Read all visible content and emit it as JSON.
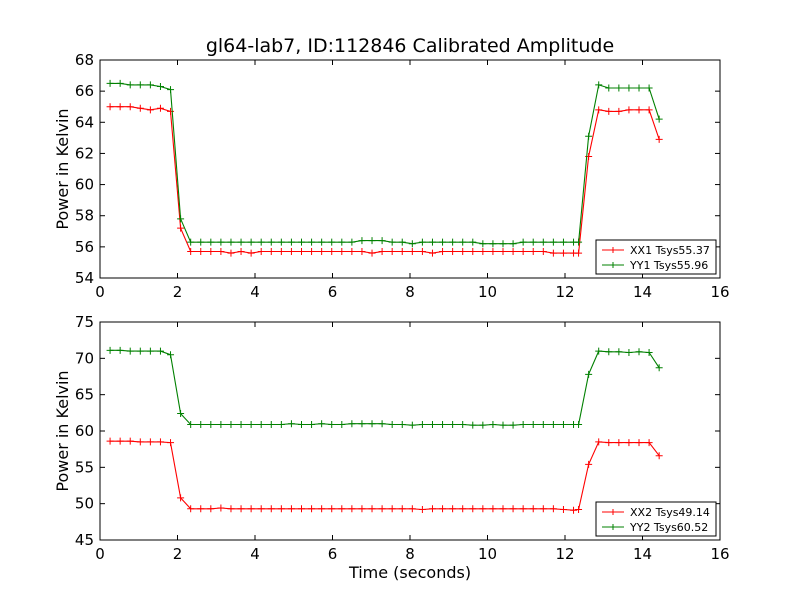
{
  "chart_data": [
    {
      "type": "line",
      "title": "gl64-lab7, ID:112846 Calibrated Amplitude",
      "xlabel": "",
      "ylabel": "Power in Kelvin",
      "xlim": [
        0,
        16
      ],
      "ylim": [
        54,
        68
      ],
      "xticks": [
        0,
        2,
        4,
        6,
        8,
        10,
        12,
        14,
        16
      ],
      "yticks": [
        54,
        56,
        58,
        60,
        62,
        64,
        66,
        68
      ],
      "legend_position": "lower-right",
      "x": [
        0.26,
        0.52,
        0.78,
        1.04,
        1.3,
        1.56,
        1.82,
        2.08,
        2.34,
        2.6,
        2.86,
        3.12,
        3.38,
        3.64,
        3.9,
        4.16,
        4.42,
        4.68,
        4.94,
        5.2,
        5.46,
        5.72,
        5.98,
        6.24,
        6.5,
        6.76,
        7.02,
        7.28,
        7.54,
        7.8,
        8.06,
        8.32,
        8.58,
        8.84,
        9.1,
        9.36,
        9.62,
        9.88,
        10.14,
        10.4,
        10.66,
        10.92,
        11.18,
        11.44,
        11.7,
        11.96,
        12.22,
        12.35,
        12.61,
        12.87,
        13.13,
        13.39,
        13.65,
        13.91,
        14.17,
        14.43
      ],
      "series": [
        {
          "name": "XX1 Tsys55.37",
          "color": "#ff0000",
          "values": [
            65.0,
            65.0,
            65.0,
            64.9,
            64.8,
            64.9,
            64.7,
            57.2,
            55.7,
            55.7,
            55.7,
            55.7,
            55.6,
            55.7,
            55.6,
            55.7,
            55.7,
            55.7,
            55.7,
            55.7,
            55.7,
            55.7,
            55.7,
            55.7,
            55.7,
            55.7,
            55.6,
            55.7,
            55.7,
            55.7,
            55.7,
            55.7,
            55.6,
            55.7,
            55.7,
            55.7,
            55.7,
            55.7,
            55.7,
            55.7,
            55.7,
            55.7,
            55.7,
            55.7,
            55.6,
            55.6,
            55.6,
            55.6,
            61.8,
            64.8,
            64.7,
            64.7,
            64.8,
            64.8,
            64.8,
            62.9
          ]
        },
        {
          "name": "YY1 Tsys55.96",
          "color": "#008000",
          "values": [
            66.5,
            66.5,
            66.4,
            66.4,
            66.4,
            66.3,
            66.1,
            57.8,
            56.3,
            56.3,
            56.3,
            56.3,
            56.3,
            56.3,
            56.3,
            56.3,
            56.3,
            56.3,
            56.3,
            56.3,
            56.3,
            56.3,
            56.3,
            56.3,
            56.3,
            56.4,
            56.4,
            56.4,
            56.3,
            56.3,
            56.2,
            56.3,
            56.3,
            56.3,
            56.3,
            56.3,
            56.3,
            56.2,
            56.2,
            56.2,
            56.2,
            56.3,
            56.3,
            56.3,
            56.3,
            56.3,
            56.3,
            56.3,
            63.1,
            66.4,
            66.2,
            66.2,
            66.2,
            66.2,
            66.2,
            64.2
          ]
        }
      ]
    },
    {
      "type": "line",
      "title": "",
      "xlabel": "Time (seconds)",
      "ylabel": "Power in Kelvin",
      "xlim": [
        0,
        16
      ],
      "ylim": [
        45,
        75
      ],
      "xticks": [
        0,
        2,
        4,
        6,
        8,
        10,
        12,
        14,
        16
      ],
      "yticks": [
        45,
        50,
        55,
        60,
        65,
        70,
        75
      ],
      "legend_position": "lower-right",
      "x": [
        0.26,
        0.52,
        0.78,
        1.04,
        1.3,
        1.56,
        1.82,
        2.08,
        2.34,
        2.6,
        2.86,
        3.12,
        3.38,
        3.64,
        3.9,
        4.16,
        4.42,
        4.68,
        4.94,
        5.2,
        5.46,
        5.72,
        5.98,
        6.24,
        6.5,
        6.76,
        7.02,
        7.28,
        7.54,
        7.8,
        8.06,
        8.32,
        8.58,
        8.84,
        9.1,
        9.36,
        9.62,
        9.88,
        10.14,
        10.4,
        10.66,
        10.92,
        11.18,
        11.44,
        11.7,
        11.96,
        12.22,
        12.35,
        12.61,
        12.87,
        13.13,
        13.39,
        13.65,
        13.91,
        14.17,
        14.43
      ],
      "series": [
        {
          "name": "XX2 Tsys49.14",
          "color": "#ff0000",
          "values": [
            58.6,
            58.6,
            58.6,
            58.5,
            58.5,
            58.5,
            58.4,
            50.8,
            49.3,
            49.3,
            49.3,
            49.4,
            49.3,
            49.3,
            49.3,
            49.3,
            49.3,
            49.3,
            49.3,
            49.3,
            49.3,
            49.3,
            49.3,
            49.3,
            49.3,
            49.3,
            49.3,
            49.3,
            49.3,
            49.3,
            49.3,
            49.2,
            49.3,
            49.3,
            49.3,
            49.3,
            49.3,
            49.3,
            49.3,
            49.3,
            49.3,
            49.3,
            49.3,
            49.3,
            49.3,
            49.2,
            49.1,
            49.2,
            55.4,
            58.5,
            58.4,
            58.4,
            58.4,
            58.4,
            58.4,
            56.6
          ]
        },
        {
          "name": "YY2 Tsys60.52",
          "color": "#008000",
          "values": [
            71.1,
            71.1,
            71.0,
            71.0,
            71.0,
            71.0,
            70.5,
            62.4,
            60.9,
            60.9,
            60.9,
            60.9,
            60.9,
            60.9,
            60.9,
            60.9,
            60.9,
            60.9,
            61.0,
            60.9,
            60.9,
            61.0,
            60.9,
            60.9,
            61.0,
            61.0,
            61.0,
            61.0,
            60.9,
            60.9,
            60.8,
            60.9,
            60.9,
            60.9,
            60.9,
            60.9,
            60.8,
            60.8,
            60.9,
            60.8,
            60.8,
            60.9,
            60.9,
            60.9,
            60.9,
            60.9,
            60.9,
            60.9,
            67.8,
            71.0,
            70.9,
            70.9,
            70.8,
            70.9,
            70.8,
            68.7
          ]
        }
      ]
    }
  ]
}
